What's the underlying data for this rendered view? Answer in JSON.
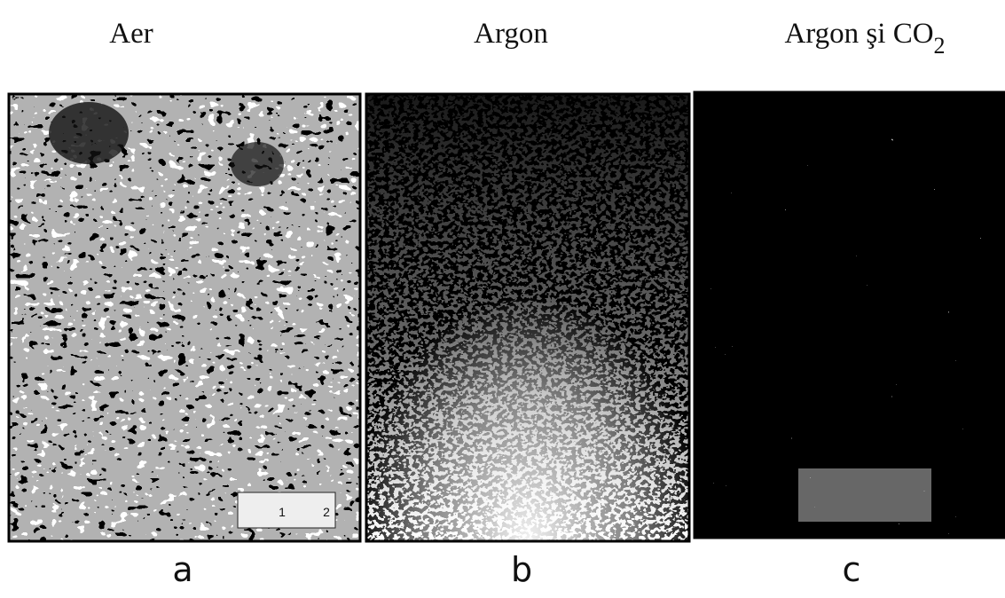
{
  "panels": [
    {
      "title": "Aer",
      "label": "a",
      "scale_labels": [
        "1",
        "2"
      ]
    },
    {
      "title": "Argon",
      "label": "b"
    },
    {
      "title": {
        "text": "Argon şi CO",
        "subscript": "2"
      },
      "label": "c"
    }
  ]
}
